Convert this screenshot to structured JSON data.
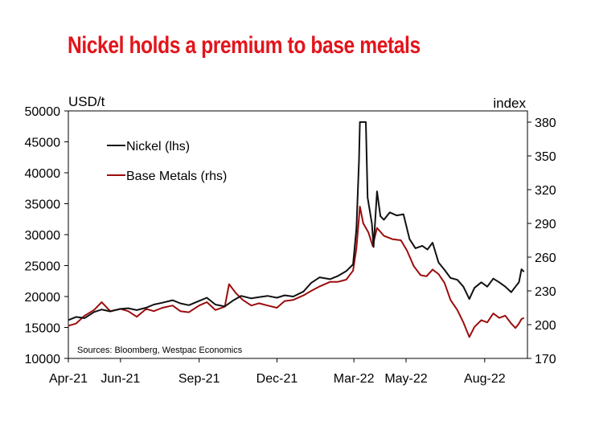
{
  "title": "Nickel holds a premium to base metals",
  "colors": {
    "title": "#e3141b",
    "nickel": "#111111",
    "base_metals": "#9b0d0d",
    "axis": "#000000"
  },
  "chart_data": {
    "type": "line",
    "left_axis": {
      "label": "USD/t",
      "ylim": [
        10000,
        50000
      ],
      "ticks": [
        50000,
        45000,
        40000,
        35000,
        30000,
        25000,
        20000,
        15000,
        10000
      ]
    },
    "right_axis": {
      "label": "index",
      "ylim": [
        170,
        390
      ],
      "ticks": [
        380,
        350,
        320,
        290,
        260,
        230,
        200,
        170
      ]
    },
    "x_axis": {
      "start": "2021-04-01",
      "end": "2022-09-20",
      "tick_dates": [
        "2021-04-01",
        "2021-06-01",
        "2021-09-01",
        "2021-12-01",
        "2022-03-01",
        "2022-05-01",
        "2022-08-01"
      ],
      "tick_labels": [
        "Apr-21",
        "Jun-21",
        "Sep-21",
        "Dec-21",
        "Mar-22",
        "May-22",
        "Aug-22"
      ]
    },
    "grid": false,
    "legend": {
      "position": "top-left",
      "entries": [
        "Nickel (lhs)",
        "Base Metals (rhs)"
      ]
    },
    "annotation": "Sources: Bloomberg, Westpac Economics",
    "series": [
      {
        "name": "Nickel (lhs)",
        "axis": "left",
        "points": [
          [
            "2021-04-01",
            16200
          ],
          [
            "2021-04-10",
            16700
          ],
          [
            "2021-04-20",
            16500
          ],
          [
            "2021-05-01",
            17500
          ],
          [
            "2021-05-10",
            17900
          ],
          [
            "2021-05-20",
            17600
          ],
          [
            "2021-06-01",
            18000
          ],
          [
            "2021-06-10",
            18100
          ],
          [
            "2021-06-20",
            17800
          ],
          [
            "2021-07-01",
            18200
          ],
          [
            "2021-07-10",
            18700
          ],
          [
            "2021-07-20",
            19000
          ],
          [
            "2021-08-01",
            19400
          ],
          [
            "2021-08-10",
            18900
          ],
          [
            "2021-08-20",
            18600
          ],
          [
            "2021-09-01",
            19300
          ],
          [
            "2021-09-10",
            19800
          ],
          [
            "2021-09-20",
            18700
          ],
          [
            "2021-10-01",
            18400
          ],
          [
            "2021-10-10",
            19300
          ],
          [
            "2021-10-20",
            20100
          ],
          [
            "2021-11-01",
            19700
          ],
          [
            "2021-11-10",
            19900
          ],
          [
            "2021-11-20",
            20100
          ],
          [
            "2021-12-01",
            19800
          ],
          [
            "2021-12-10",
            20200
          ],
          [
            "2021-12-20",
            20000
          ],
          [
            "2022-01-01",
            20800
          ],
          [
            "2022-01-10",
            22200
          ],
          [
            "2022-01-20",
            23100
          ],
          [
            "2022-02-01",
            22800
          ],
          [
            "2022-02-10",
            23300
          ],
          [
            "2022-02-20",
            24100
          ],
          [
            "2022-02-28",
            25200
          ],
          [
            "2022-03-04",
            31000
          ],
          [
            "2022-03-07",
            42000
          ],
          [
            "2022-03-08",
            48200
          ],
          [
            "2022-03-15",
            48200
          ],
          [
            "2022-03-17",
            36000
          ],
          [
            "2022-03-22",
            31800
          ],
          [
            "2022-03-24",
            28000
          ],
          [
            "2022-03-28",
            37000
          ],
          [
            "2022-04-01",
            33000
          ],
          [
            "2022-04-05",
            32400
          ],
          [
            "2022-04-12",
            33600
          ],
          [
            "2022-04-20",
            33100
          ],
          [
            "2022-04-28",
            33300
          ],
          [
            "2022-05-05",
            29300
          ],
          [
            "2022-05-12",
            27800
          ],
          [
            "2022-05-20",
            28200
          ],
          [
            "2022-05-26",
            27600
          ],
          [
            "2022-06-01",
            28700
          ],
          [
            "2022-06-08",
            25500
          ],
          [
            "2022-06-15",
            24300
          ],
          [
            "2022-06-22",
            23000
          ],
          [
            "2022-06-30",
            22700
          ],
          [
            "2022-07-07",
            21600
          ],
          [
            "2022-07-14",
            19600
          ],
          [
            "2022-07-20",
            21400
          ],
          [
            "2022-07-28",
            22300
          ],
          [
            "2022-08-04",
            21600
          ],
          [
            "2022-08-11",
            22900
          ],
          [
            "2022-08-18",
            22300
          ],
          [
            "2022-08-25",
            21600
          ],
          [
            "2022-09-01",
            20700
          ],
          [
            "2022-09-06",
            21600
          ],
          [
            "2022-09-10",
            22300
          ],
          [
            "2022-09-13",
            24400
          ],
          [
            "2022-09-16",
            24000
          ]
        ]
      },
      {
        "name": "Base Metals (rhs)",
        "axis": "right",
        "points": [
          [
            "2021-04-01",
            199
          ],
          [
            "2021-04-10",
            201
          ],
          [
            "2021-04-20",
            208
          ],
          [
            "2021-05-01",
            213
          ],
          [
            "2021-05-10",
            220
          ],
          [
            "2021-05-20",
            212
          ],
          [
            "2021-06-01",
            214
          ],
          [
            "2021-06-10",
            212
          ],
          [
            "2021-06-20",
            207
          ],
          [
            "2021-07-01",
            214
          ],
          [
            "2021-07-10",
            212
          ],
          [
            "2021-07-20",
            215
          ],
          [
            "2021-08-01",
            217
          ],
          [
            "2021-08-10",
            212
          ],
          [
            "2021-08-20",
            211
          ],
          [
            "2021-09-01",
            217
          ],
          [
            "2021-09-10",
            220
          ],
          [
            "2021-09-20",
            213
          ],
          [
            "2021-10-01",
            216
          ],
          [
            "2021-10-06",
            236
          ],
          [
            "2021-10-14",
            228
          ],
          [
            "2021-10-22",
            222
          ],
          [
            "2021-11-01",
            217
          ],
          [
            "2021-11-10",
            219
          ],
          [
            "2021-11-20",
            217
          ],
          [
            "2021-12-01",
            215
          ],
          [
            "2021-12-10",
            221
          ],
          [
            "2021-12-20",
            222
          ],
          [
            "2022-01-01",
            226
          ],
          [
            "2022-01-10",
            230
          ],
          [
            "2022-01-20",
            234
          ],
          [
            "2022-02-01",
            238
          ],
          [
            "2022-02-10",
            238
          ],
          [
            "2022-02-20",
            240
          ],
          [
            "2022-02-28",
            248
          ],
          [
            "2022-03-04",
            268
          ],
          [
            "2022-03-08",
            305
          ],
          [
            "2022-03-12",
            290
          ],
          [
            "2022-03-18",
            282
          ],
          [
            "2022-03-23",
            270
          ],
          [
            "2022-03-28",
            286
          ],
          [
            "2022-04-05",
            279
          ],
          [
            "2022-04-15",
            276
          ],
          [
            "2022-04-25",
            275
          ],
          [
            "2022-05-02",
            266
          ],
          [
            "2022-05-10",
            252
          ],
          [
            "2022-05-18",
            244
          ],
          [
            "2022-05-25",
            243
          ],
          [
            "2022-06-01",
            249
          ],
          [
            "2022-06-08",
            245
          ],
          [
            "2022-06-15",
            237
          ],
          [
            "2022-06-22",
            222
          ],
          [
            "2022-06-30",
            213
          ],
          [
            "2022-07-07",
            202
          ],
          [
            "2022-07-14",
            189
          ],
          [
            "2022-07-20",
            198
          ],
          [
            "2022-07-28",
            204
          ],
          [
            "2022-08-04",
            202
          ],
          [
            "2022-08-11",
            210
          ],
          [
            "2022-08-18",
            206
          ],
          [
            "2022-08-25",
            208
          ],
          [
            "2022-09-01",
            201
          ],
          [
            "2022-09-06",
            197
          ],
          [
            "2022-09-10",
            201
          ],
          [
            "2022-09-13",
            205
          ],
          [
            "2022-09-16",
            206
          ]
        ]
      }
    ]
  }
}
